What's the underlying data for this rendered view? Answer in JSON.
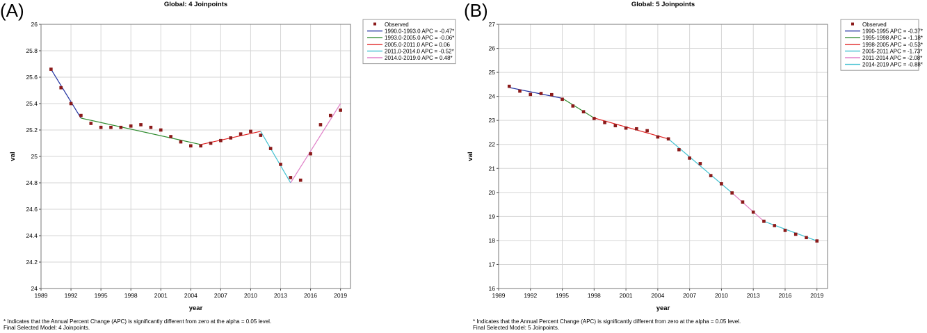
{
  "footnote": {
    "line1": "* Indicates that the Annual Percent Change (APC) is significantly different from zero at the alpha = 0.05 level."
  },
  "chart_data": [
    {
      "panel_label": "(A)",
      "type": "line",
      "title": "Global: 4 Joinpoints",
      "xlabel": "year",
      "ylabel": "val",
      "xlim": [
        1989,
        2020
      ],
      "ylim": [
        24,
        26
      ],
      "xticks": [
        1989,
        1992,
        1995,
        1998,
        2001,
        2004,
        2007,
        2010,
        2013,
        2016,
        2019
      ],
      "yticks": [
        24,
        24.2,
        24.4,
        24.6,
        24.8,
        25,
        25.2,
        25.4,
        25.6,
        25.8,
        26
      ],
      "ytick_labels": [
        "24",
        "24.2",
        "24.4",
        "24.6",
        "24.8",
        "25",
        "25.2",
        "25.4",
        "25.6",
        "25.8",
        "26"
      ],
      "grid": true,
      "legend_position": "top-right",
      "final_model": "Final Selected Model: 4 Joinpoints.",
      "observed": {
        "name": "Observed",
        "color": "#8b1a1a",
        "x": [
          1990,
          1991,
          1992,
          1993,
          1994,
          1995,
          1996,
          1997,
          1998,
          1999,
          2000,
          2001,
          2002,
          2003,
          2004,
          2005,
          2006,
          2007,
          2008,
          2009,
          2010,
          2011,
          2012,
          2013,
          2014,
          2015,
          2016,
          2017,
          2018,
          2019
        ],
        "y": [
          25.66,
          25.52,
          25.4,
          25.31,
          25.25,
          25.22,
          25.22,
          25.22,
          25.23,
          25.24,
          25.22,
          25.2,
          25.15,
          25.11,
          25.08,
          25.08,
          25.1,
          25.12,
          25.14,
          25.17,
          25.19,
          25.16,
          25.06,
          24.94,
          24.84,
          24.82,
          25.02,
          25.24,
          25.31,
          25.35
        ]
      },
      "series": [
        {
          "name": "1990.0-1993.0 APC  = -0.47*",
          "color": "#1f2f9f",
          "x": [
            1990,
            1993
          ],
          "y": [
            25.66,
            25.29
          ]
        },
        {
          "name": "1993.0-2005.0 APC  = -0.06*",
          "color": "#2e8b2e",
          "x": [
            1993,
            2005
          ],
          "y": [
            25.29,
            25.09
          ]
        },
        {
          "name": "2005.0-2011.0 APC  = 0.06",
          "color": "#e02020",
          "x": [
            2005,
            2011
          ],
          "y": [
            25.09,
            25.19
          ]
        },
        {
          "name": "2011.0-2014.0 APC  = -0.52*",
          "color": "#40c0d0",
          "x": [
            2011,
            2014
          ],
          "y": [
            25.19,
            24.8
          ]
        },
        {
          "name": "2014.0-2019.0 APC  = 0.48*",
          "color": "#e080c8",
          "x": [
            2014,
            2019
          ],
          "y": [
            24.8,
            25.4
          ]
        }
      ]
    },
    {
      "panel_label": "(B)",
      "type": "line",
      "title": "Global: 5 Joinpoints",
      "xlabel": "year",
      "ylabel": "val",
      "xlim": [
        1989,
        2020
      ],
      "ylim": [
        16,
        27
      ],
      "xticks": [
        1989,
        1992,
        1995,
        1998,
        2001,
        2004,
        2007,
        2010,
        2013,
        2016,
        2019
      ],
      "yticks": [
        16,
        17,
        18,
        19,
        20,
        21,
        22,
        23,
        24,
        25,
        26,
        27
      ],
      "ytick_labels": [
        "16",
        "17",
        "18",
        "19",
        "20",
        "21",
        "22",
        "23",
        "24",
        "25",
        "26",
        "27"
      ],
      "grid": true,
      "legend_position": "top-right",
      "final_model": "Final Selected Model: 5 Joinpoints.",
      "observed": {
        "name": "Observed",
        "color": "#8b1a1a",
        "x": [
          1990,
          1991,
          1992,
          1993,
          1994,
          1995,
          1996,
          1997,
          1998,
          1999,
          2000,
          2001,
          2002,
          2003,
          2004,
          2005,
          2006,
          2007,
          2008,
          2009,
          2010,
          2011,
          2012,
          2013,
          2014,
          2015,
          2016,
          2017,
          2018,
          2019
        ],
        "y": [
          24.42,
          24.22,
          24.08,
          24.12,
          24.07,
          23.88,
          23.6,
          23.36,
          23.08,
          22.91,
          22.78,
          22.68,
          22.65,
          22.57,
          22.31,
          22.23,
          21.78,
          21.43,
          21.2,
          20.7,
          20.36,
          19.98,
          19.6,
          19.18,
          18.8,
          18.62,
          18.42,
          18.26,
          18.12,
          17.98
        ]
      },
      "series": [
        {
          "name": "1990-1995 APC  = -0.37*",
          "color": "#1f2f9f",
          "x": [
            1990,
            1995
          ],
          "y": [
            24.37,
            23.92
          ]
        },
        {
          "name": "1995-1998 APC  = -1.18*",
          "color": "#2e8b2e",
          "x": [
            1995,
            1998
          ],
          "y": [
            23.92,
            23.1
          ]
        },
        {
          "name": "1998-2005 APC  = -0.53*",
          "color": "#e02020",
          "x": [
            1998,
            2005
          ],
          "y": [
            23.1,
            22.23
          ]
        },
        {
          "name": "2005-2011 APC  = -1.73*",
          "color": "#40c0d0",
          "x": [
            2005,
            2011
          ],
          "y": [
            22.23,
            19.98
          ]
        },
        {
          "name": "2011-2014 APC  = -2.08*",
          "color": "#e080c8",
          "x": [
            2011,
            2014
          ],
          "y": [
            19.98,
            18.8
          ]
        },
        {
          "name": "2014-2019 APC  = -0.88*",
          "color": "#40c0d0",
          "x": [
            2014,
            2019
          ],
          "y": [
            18.8,
            17.98
          ]
        }
      ]
    }
  ]
}
